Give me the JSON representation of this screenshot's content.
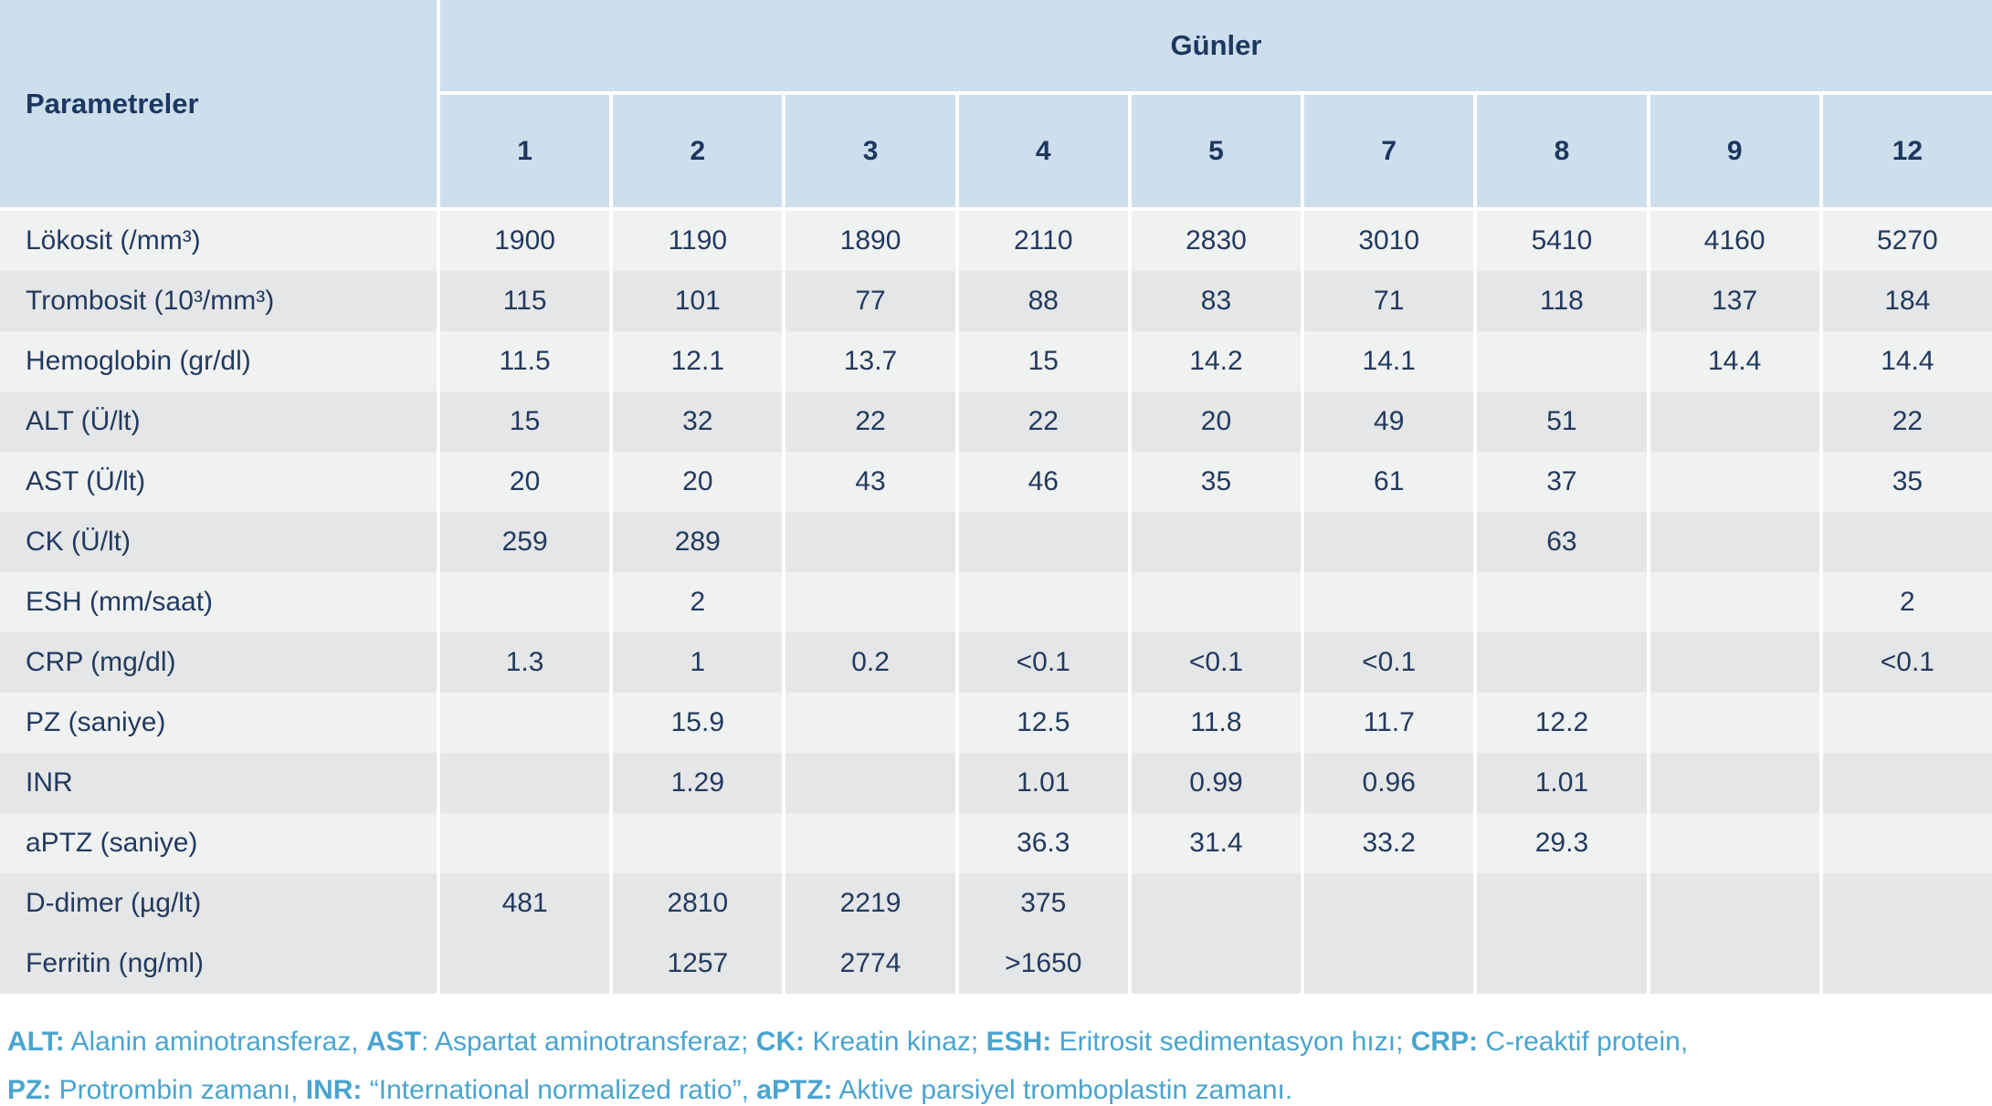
{
  "table": {
    "corner_header": "Parametreler",
    "group_header": "Günler",
    "day_columns": [
      "1",
      "2",
      "3",
      "4",
      "5",
      "7",
      "8",
      "9",
      "12"
    ],
    "rows": [
      {
        "label": "Lökosit (/mm³)",
        "values": [
          "1900",
          "1190",
          "1890",
          "2110",
          "2830",
          "3010",
          "5410",
          "4160",
          "5270"
        ]
      },
      {
        "label": "Trombosit (10³/mm³)",
        "values": [
          "115",
          "101",
          "77",
          "88",
          "83",
          "71",
          "118",
          "137",
          "184"
        ]
      },
      {
        "label": "Hemoglobin (gr/dl)",
        "values": [
          "11.5",
          "12.1",
          "13.7",
          "15",
          "14.2",
          "14.1",
          "",
          "14.4",
          "14.4"
        ]
      },
      {
        "label": "ALT (Ü/lt)",
        "values": [
          "15",
          "32",
          "22",
          "22",
          "20",
          "49",
          "51",
          "",
          "22"
        ]
      },
      {
        "label": "AST (Ü/lt)",
        "values": [
          "20",
          "20",
          "43",
          "46",
          "35",
          "61",
          "37",
          "",
          "35"
        ]
      },
      {
        "label": "CK (Ü/lt)",
        "values": [
          "259",
          "289",
          "",
          "",
          "",
          "",
          "63",
          "",
          ""
        ]
      },
      {
        "label": "ESH (mm/saat)",
        "values": [
          "",
          "2",
          "",
          "",
          "",
          "",
          "",
          "",
          "2"
        ]
      },
      {
        "label": "CRP (mg/dl)",
        "values": [
          "1.3",
          "1",
          "0.2",
          "<0.1",
          "<0.1",
          "<0.1",
          "",
          "",
          "<0.1"
        ]
      },
      {
        "label": "PZ (saniye)",
        "values": [
          "",
          "15.9",
          "",
          "12.5",
          "11.8",
          "11.7",
          "12.2",
          "",
          ""
        ]
      },
      {
        "label": "INR",
        "values": [
          "",
          "1.29",
          "",
          "1.01",
          "0.99",
          "0.96",
          "1.01",
          "",
          ""
        ]
      },
      {
        "label": "aPTZ (saniye)",
        "values": [
          "",
          "",
          "",
          "36.3",
          "31.4",
          "33.2",
          "29.3",
          "",
          ""
        ]
      },
      {
        "label": "D-dimer (µg/lt)",
        "values": [
          "481",
          "2810",
          "2219",
          "375",
          "",
          "",
          "",
          "",
          ""
        ]
      },
      {
        "label": "Ferritin (ng/ml)",
        "values": [
          "",
          "1257",
          "2774",
          ">1650",
          "",
          "",
          "",
          "",
          ""
        ]
      }
    ]
  },
  "footnotes": {
    "line1": [
      {
        "b": "ALT:",
        "t": " Alanin aminotransferaz, "
      },
      {
        "b": "AST",
        "t": ": Aspartat aminotransferaz; "
      },
      {
        "b": "CK:",
        "t": " Kreatin kinaz; "
      },
      {
        "b": "ESH:",
        "t": " Eritrosit sedimentasyon hızı; "
      },
      {
        "b": "CRP:",
        "t": " C-reaktif protein,"
      }
    ],
    "line2": [
      {
        "b": "PZ:",
        "t": " Protrombin zamanı, "
      },
      {
        "b": "INR:",
        "t": " “International normalized ratio”, "
      },
      {
        "b": "aPTZ:",
        "t": " Aktive parsiyel tromboplastin zamanı."
      }
    ]
  },
  "colors": {
    "header_bg": "#cddeed",
    "header_text": "#1c3860",
    "row_light": "#f0f1f1",
    "row_dark": "#e4e6e7",
    "body_text": "#223a5e",
    "footnote_text": "#4aa4ce",
    "separator": "#ffffff"
  }
}
